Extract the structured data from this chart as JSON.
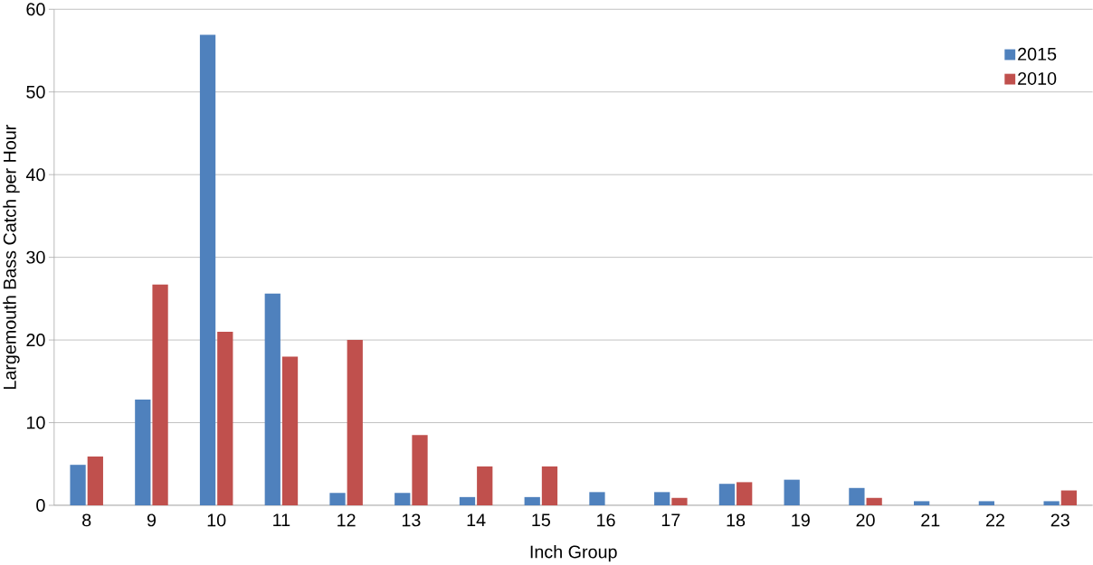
{
  "chart_data": {
    "type": "bar",
    "xlabel": "Inch Group",
    "ylabel": "Largemouth Bass Catch per Hour",
    "categories": [
      "8",
      "9",
      "10",
      "11",
      "12",
      "13",
      "14",
      "15",
      "16",
      "17",
      "18",
      "19",
      "20",
      "21",
      "22",
      "23"
    ],
    "series": [
      {
        "name": "2015",
        "color": "#4f81bd",
        "values": [
          4.9,
          12.8,
          56.9,
          25.6,
          1.5,
          1.5,
          1.0,
          1.0,
          1.6,
          1.6,
          2.6,
          3.1,
          2.1,
          0.5,
          0.5,
          0.5
        ]
      },
      {
        "name": "2010",
        "color": "#c0504d",
        "values": [
          5.9,
          26.7,
          21.0,
          18.0,
          20.0,
          8.5,
          4.7,
          4.7,
          0,
          0.9,
          2.8,
          0,
          0.9,
          0,
          0,
          1.8
        ]
      }
    ],
    "ylim": [
      0,
      60
    ],
    "yticks": [
      0,
      10,
      20,
      30,
      40,
      50,
      60
    ],
    "grid": "y",
    "legend": "top right"
  }
}
